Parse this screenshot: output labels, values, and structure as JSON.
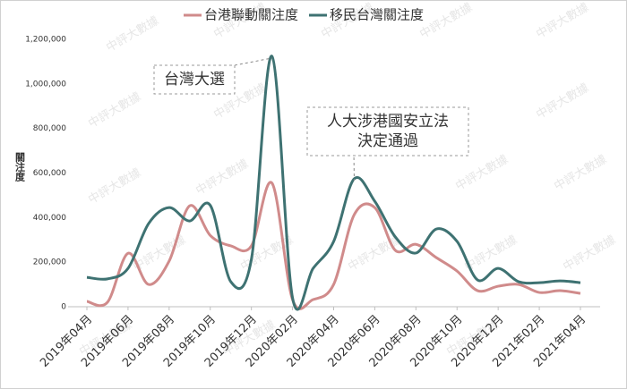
{
  "chart_data": {
    "type": "line",
    "categories": [
      "2019年04月",
      null,
      "2019年06月",
      null,
      "2019年08月",
      null,
      "2019年10月",
      null,
      "2019年12月",
      null,
      "2020年02月",
      null,
      "2020年04月",
      null,
      "2020年06月",
      null,
      "2020年08月",
      null,
      "2020年10月",
      null,
      "2020年12月",
      null,
      "2021年02月",
      null,
      "2021年04月"
    ],
    "series": [
      {
        "name": "台港聯動關注度",
        "color": "#d08b8b",
        "values": [
          24000,
          20000,
          240000,
          100000,
          205000,
          453000,
          320000,
          273000,
          273000,
          555000,
          32000,
          32000,
          100000,
          413000,
          445000,
          253000,
          280000,
          220000,
          160000,
          72000,
          92000,
          100000,
          64000,
          72000,
          60000
        ]
      },
      {
        "name": "移民台灣關注度",
        "color": "#3e7272",
        "values": [
          132000,
          125000,
          172000,
          373000,
          445000,
          385000,
          455000,
          112000,
          213000,
          1124000,
          40000,
          172000,
          293000,
          574000,
          473000,
          313000,
          241000,
          349000,
          293000,
          120000,
          172000,
          112000,
          108000,
          116000,
          108000
        ]
      }
    ],
    "ylim": [
      0,
      1200000
    ],
    "yticks": [
      0,
      {
        "value": 200000,
        "label": "200,000"
      },
      {
        "value": 400000,
        "label": "400,000"
      },
      {
        "value": 600000,
        "label": "600,000"
      },
      {
        "value": 800000,
        "label": "800,000"
      },
      {
        "value": 1000000,
        "label": "1,000,000"
      },
      {
        "value": 1200000,
        "label": "1,200,000"
      }
    ],
    "y_label": "關注度",
    "annotations": [
      {
        "lines": [
          "台灣大選"
        ],
        "index": 9
      },
      {
        "lines": [
          "人大涉港國安立法",
          "決定通過"
        ],
        "index": 13
      }
    ],
    "watermark": "中評大數據",
    "legend": "top"
  }
}
